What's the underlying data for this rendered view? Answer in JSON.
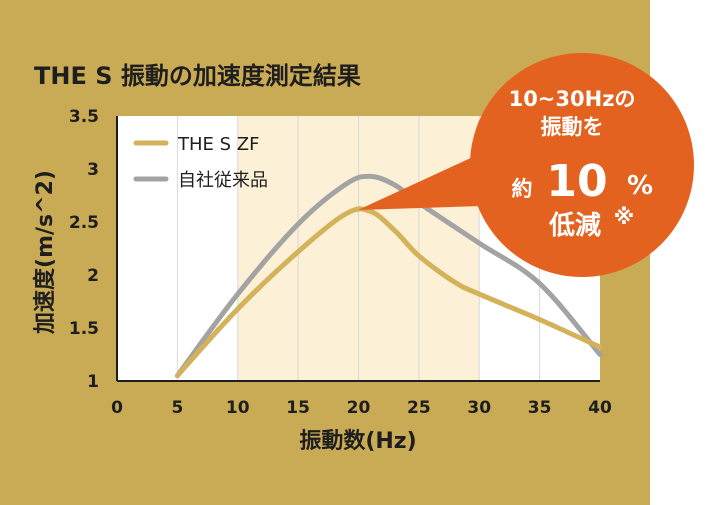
{
  "colors": {
    "panel_bg": "#c9aa55",
    "plot_bg": "#ffffff",
    "highlight_band": "#fcf0d6",
    "grid": "#d9d9d9",
    "series_the_s_zf": "#d3b25a",
    "series_own_product": "#a3a3a3",
    "callout": "#e4621f",
    "text": "#1e1e1e"
  },
  "callout": {
    "line1": "10~30Hzの",
    "line2": "振動を",
    "prefix": "約",
    "big_value": "10",
    "unit": "%",
    "line4": "低減",
    "mark": "※"
  },
  "chart_data": {
    "type": "line",
    "title": "THE S 振動の加速度測定結果",
    "xlabel": "振動数(Hz)",
    "ylabel": "加速度(m/s^2)",
    "xlim": [
      0,
      40
    ],
    "ylim": [
      1,
      3.5
    ],
    "x_ticks": [
      "0",
      "5",
      "10",
      "15",
      "20",
      "25",
      "30",
      "35",
      "40"
    ],
    "y_ticks": [
      "1",
      "1.5",
      "2",
      "2.5",
      "3",
      "3.5"
    ],
    "highlight_range": [
      10,
      30
    ],
    "grid": "vertical",
    "legend_position": "top-left",
    "series": [
      {
        "name": "THE S ZF",
        "color": "#d3b25a",
        "points": [
          [
            5,
            1.05
          ],
          [
            10,
            1.68
          ],
          [
            15,
            2.22
          ],
          [
            19,
            2.58
          ],
          [
            21,
            2.6
          ],
          [
            23,
            2.42
          ],
          [
            25,
            2.18
          ],
          [
            28,
            1.93
          ],
          [
            30,
            1.82
          ],
          [
            35,
            1.58
          ],
          [
            40,
            1.32
          ]
        ]
      },
      {
        "name": "自社従来品",
        "color": "#a3a3a3",
        "points": [
          [
            5,
            1.05
          ],
          [
            10,
            1.82
          ],
          [
            15,
            2.48
          ],
          [
            19,
            2.86
          ],
          [
            21,
            2.93
          ],
          [
            23,
            2.85
          ],
          [
            25,
            2.68
          ],
          [
            30,
            2.3
          ],
          [
            35,
            1.92
          ],
          [
            40,
            1.25
          ]
        ]
      }
    ]
  }
}
